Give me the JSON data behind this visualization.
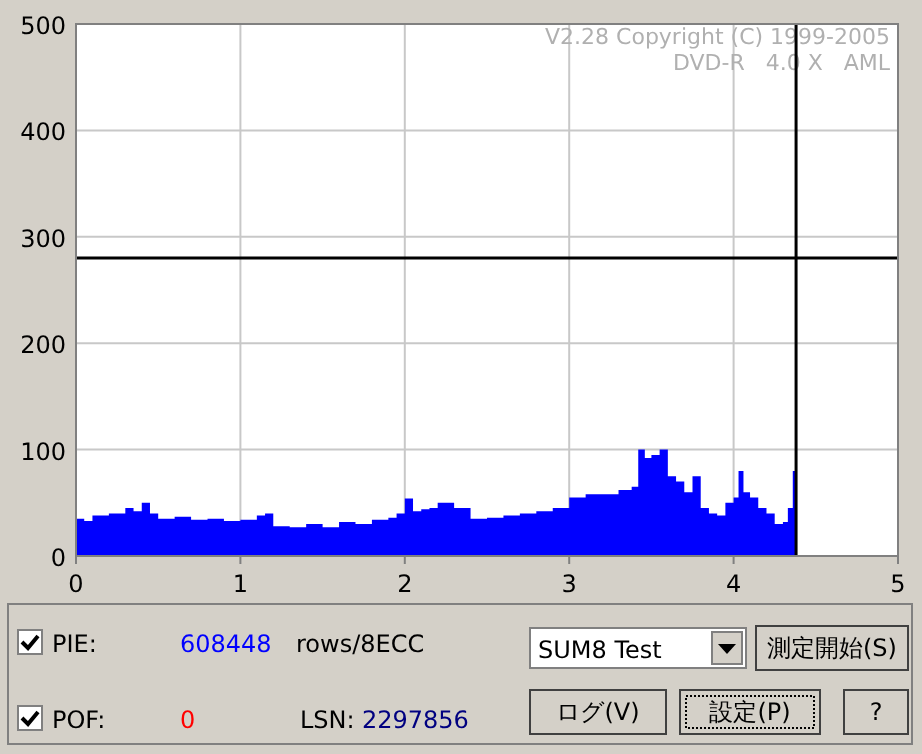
{
  "chart_data": {
    "type": "area",
    "xlim": [
      0,
      5
    ],
    "xticks": [
      0,
      1,
      2,
      3,
      4,
      5
    ],
    "ylim": [
      0,
      500
    ],
    "yticks": [
      0,
      100,
      200,
      300,
      400,
      500
    ],
    "grid": true,
    "series": [
      {
        "color": "#0000ff",
        "x": [
          0,
          0.05,
          0.1,
          0.2,
          0.3,
          0.35,
          0.4,
          0.45,
          0.5,
          0.6,
          0.7,
          0.8,
          0.9,
          1.0,
          1.1,
          1.15,
          1.2,
          1.3,
          1.4,
          1.5,
          1.6,
          1.7,
          1.8,
          1.9,
          1.95,
          2.0,
          2.05,
          2.1,
          2.15,
          2.2,
          2.3,
          2.4,
          2.5,
          2.6,
          2.7,
          2.8,
          2.9,
          3.0,
          3.1,
          3.2,
          3.3,
          3.38,
          3.42,
          3.46,
          3.5,
          3.55,
          3.6,
          3.65,
          3.7,
          3.75,
          3.8,
          3.85,
          3.9,
          3.95,
          4.0,
          4.03,
          4.06,
          4.1,
          4.15,
          4.2,
          4.25,
          4.3,
          4.33,
          4.36,
          4.38
        ],
        "values": [
          35,
          33,
          38,
          40,
          45,
          42,
          50,
          40,
          35,
          37,
          34,
          35,
          33,
          34,
          38,
          40,
          28,
          27,
          30,
          27,
          32,
          30,
          34,
          36,
          40,
          54,
          42,
          44,
          45,
          50,
          45,
          35,
          36,
          38,
          40,
          42,
          45,
          55,
          58,
          58,
          62,
          65,
          100,
          92,
          95,
          100,
          75,
          70,
          60,
          75,
          45,
          40,
          38,
          50,
          55,
          80,
          60,
          55,
          45,
          40,
          30,
          32,
          45,
          80,
          80
        ]
      }
    ],
    "ref_lines": [
      {
        "axis": "y",
        "value": 280,
        "color": "#000000"
      },
      {
        "axis": "x",
        "value": 4.38,
        "color": "#000000"
      }
    ],
    "annotations": [
      "V2.28 Copyright (C) 1999-2005",
      "DVD-R   4.0 X   AML",
      "PIE:",
      "608448",
      "rows/8ECC",
      "POF:",
      "0",
      "LSN:",
      "2297856",
      "SUM8 Test",
      "測定開始(S)",
      "ログ(V)",
      "設定(P)",
      "?"
    ]
  }
}
